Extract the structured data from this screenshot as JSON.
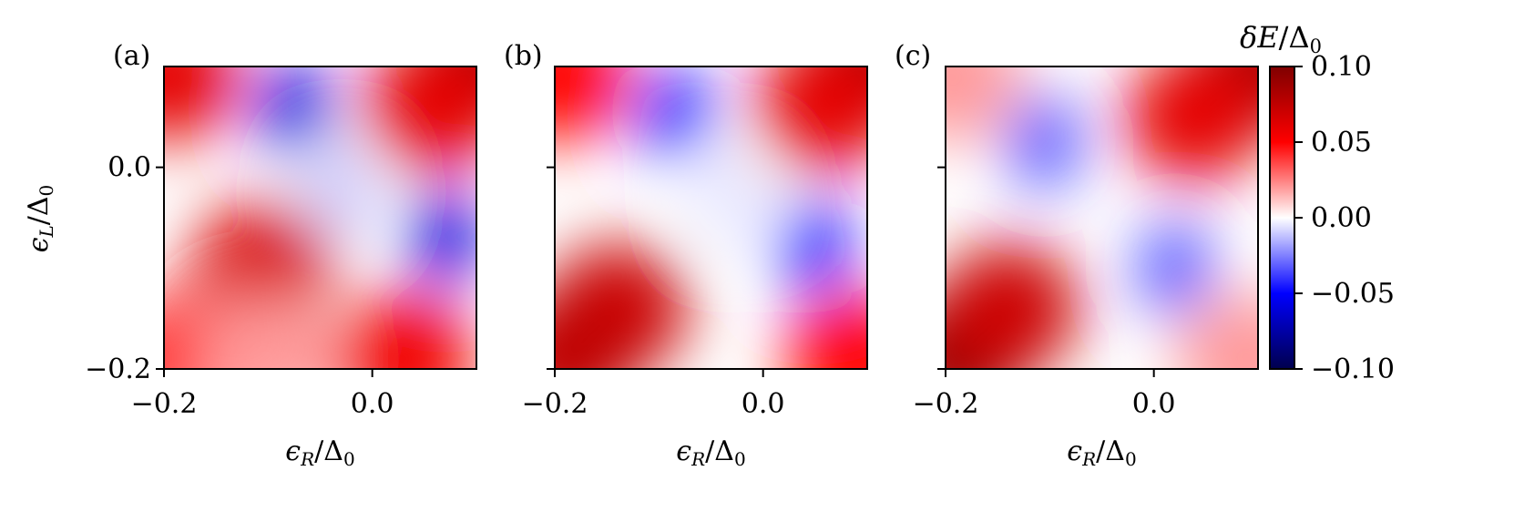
{
  "chart_data": [
    {
      "panel_label": "(a)",
      "type": "heatmap",
      "xlabel": "ε_R/Δ₀",
      "ylabel": "ε_L/Δ₀",
      "xlim": [
        -0.2,
        0.1
      ],
      "ylim": [
        -0.2,
        0.1
      ],
      "xticks": [
        "−0.2",
        "0.0"
      ],
      "yticks": [
        "−0.2",
        "0.0"
      ],
      "features": [
        {
          "x": -0.075,
          "y": 0.06,
          "value": -0.06
        },
        {
          "x": 0.07,
          "y": -0.07,
          "value": -0.06
        },
        {
          "x": -0.03,
          "y": -0.025,
          "value": -0.01
        },
        {
          "x": 0.1,
          "y": 0.1,
          "value": 0.09
        },
        {
          "x": -0.195,
          "y": 0.09,
          "value": 0.06
        },
        {
          "x": -0.105,
          "y": -0.1,
          "value": 0.065
        },
        {
          "x": -0.18,
          "y": -0.19,
          "value": 0.05
        },
        {
          "x": 0.03,
          "y": -0.19,
          "value": 0.055
        },
        {
          "x": 0.06,
          "y": 0.06,
          "value": 0.06
        },
        {
          "x": -0.105,
          "y": -0.19,
          "value": 0.02
        }
      ]
    },
    {
      "panel_label": "(b)",
      "type": "heatmap",
      "xlabel": "ε_R/Δ₀",
      "ylabel": "",
      "xlim": [
        -0.2,
        0.1
      ],
      "ylim": [
        -0.2,
        0.1
      ],
      "xticks": [
        "−0.2",
        "0.0"
      ],
      "yticks": [
        "",
        ""
      ],
      "features": [
        {
          "x": -0.085,
          "y": 0.055,
          "value": -0.045
        },
        {
          "x": 0.05,
          "y": -0.08,
          "value": -0.045
        },
        {
          "x": -0.03,
          "y": -0.03,
          "value": -0.005
        },
        {
          "x": 0.1,
          "y": 0.1,
          "value": 0.09
        },
        {
          "x": -0.14,
          "y": -0.14,
          "value": 0.07
        },
        {
          "x": -0.19,
          "y": -0.19,
          "value": 0.075
        },
        {
          "x": -0.195,
          "y": 0.09,
          "value": 0.05
        },
        {
          "x": 0.06,
          "y": 0.06,
          "value": 0.06
        },
        {
          "x": 0.09,
          "y": -0.19,
          "value": 0.05
        }
      ]
    },
    {
      "panel_label": "(c)",
      "type": "heatmap",
      "xlabel": "ε_R/Δ₀",
      "ylabel": "",
      "xlim": [
        -0.2,
        0.1
      ],
      "ylim": [
        -0.2,
        0.1
      ],
      "xticks": [
        "−0.2",
        "0.0"
      ],
      "yticks": [
        "",
        ""
      ],
      "features": [
        {
          "x": -0.105,
          "y": 0.025,
          "value": -0.035
        },
        {
          "x": 0.02,
          "y": -0.1,
          "value": -0.035
        },
        {
          "x": 0.1,
          "y": 0.1,
          "value": 0.085
        },
        {
          "x": -0.19,
          "y": -0.19,
          "value": 0.09
        },
        {
          "x": -0.14,
          "y": -0.14,
          "value": 0.07
        },
        {
          "x": 0.04,
          "y": 0.05,
          "value": 0.06
        },
        {
          "x": -0.195,
          "y": 0.09,
          "value": 0.02
        },
        {
          "x": 0.09,
          "y": -0.19,
          "value": 0.02
        }
      ]
    }
  ],
  "colorbar": {
    "label": "δE/Δ₀",
    "colormap": "seismic",
    "range": [
      -0.1,
      0.1
    ],
    "ticks": [
      "0.10",
      "0.05",
      "0.00",
      "−0.05",
      "−0.10"
    ],
    "colors": [
      "#00004c",
      "#0000ff",
      "#ffffff",
      "#ff0000",
      "#7f0000"
    ]
  }
}
